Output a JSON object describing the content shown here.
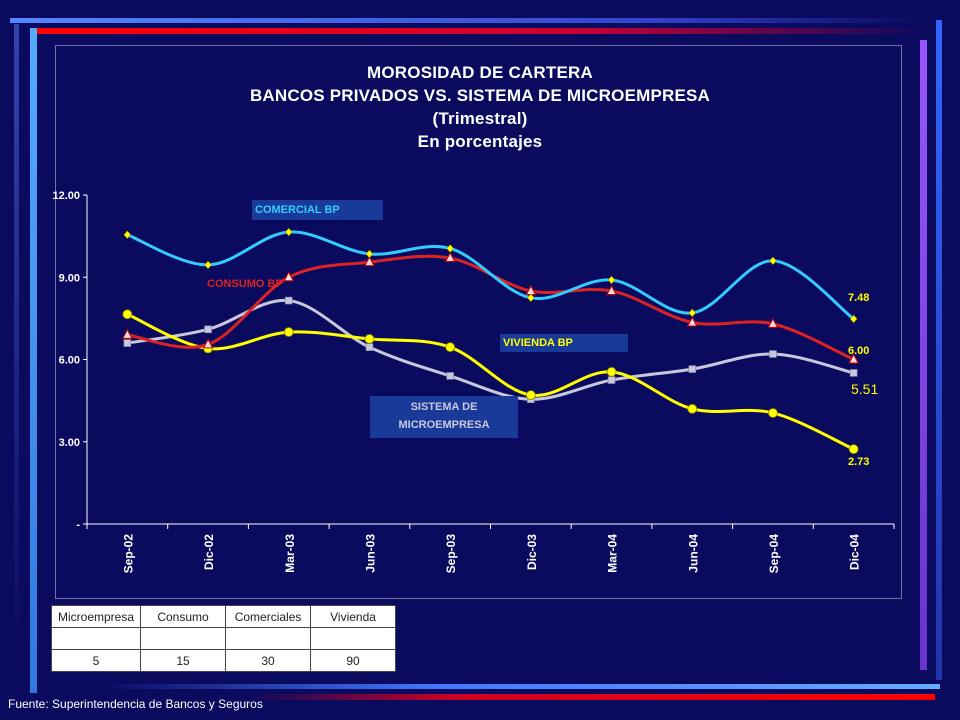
{
  "title_lines": [
    "MOROSIDAD DE CARTERA",
    "BANCOS PRIVADOS VS. SISTEMA DE MICROEMPRESA",
    "(Trimestral)",
    "En porcentajes"
  ],
  "source": "Fuente: Superintendencia de Bancos y Seguros",
  "colors": {
    "background": "#0a0a5e",
    "comercial": "#33ccff",
    "consumo": "#dd2222",
    "vivienda": "#ffff00",
    "microempresa": "#c8c8dc",
    "label_box": "#1a3a9a"
  },
  "series_labels": {
    "comercial": "COMERCIAL BP",
    "consumo": "CONSUMO BP",
    "vivienda": "VIVIENDA BP",
    "micro_line1": "SISTEMA DE",
    "micro_line2": "MICROEMPRESA"
  },
  "end_labels": {
    "comercial": "7.48",
    "consumo": "6.00",
    "micro": "5.51",
    "vivienda": "2.73"
  },
  "legend_table": {
    "headers": [
      "Microempresa",
      "Consumo",
      "Comerciales",
      "Vivienda"
    ],
    "values": [
      "5",
      "15",
      "30",
      "90"
    ]
  },
  "chart_data": {
    "type": "line",
    "title": "MOROSIDAD DE CARTERA BANCOS PRIVADOS VS. SISTEMA DE MICROEMPRESA (Trimestral) En porcentajes",
    "x": [
      "Sep-02",
      "Dic-02",
      "Mar-03",
      "Jun-03",
      "Sep-03",
      "Dic-03",
      "Mar-04",
      "Jun-04",
      "Sep-04",
      "Dic-04"
    ],
    "yticks": [
      "-",
      "3.00",
      "6.00",
      "9.00",
      "12.00"
    ],
    "ylim": [
      0,
      12
    ],
    "series": [
      {
        "name": "COMERCIAL BP",
        "values": [
          10.55,
          9.45,
          10.65,
          9.85,
          10.05,
          8.25,
          8.9,
          7.7,
          9.6,
          7.48
        ]
      },
      {
        "name": "CONSUMO BP",
        "values": [
          6.9,
          6.55,
          9.0,
          9.55,
          9.7,
          8.5,
          8.5,
          7.35,
          7.3,
          6.0
        ]
      },
      {
        "name": "VIVIENDA BP",
        "values": [
          7.65,
          6.4,
          7.0,
          6.75,
          6.45,
          4.7,
          5.55,
          4.2,
          4.05,
          2.73
        ]
      },
      {
        "name": "SISTEMA DE MICROEMPRESA",
        "values": [
          6.6,
          7.1,
          8.15,
          6.45,
          5.4,
          4.55,
          5.25,
          5.65,
          6.2,
          5.51
        ]
      }
    ]
  }
}
